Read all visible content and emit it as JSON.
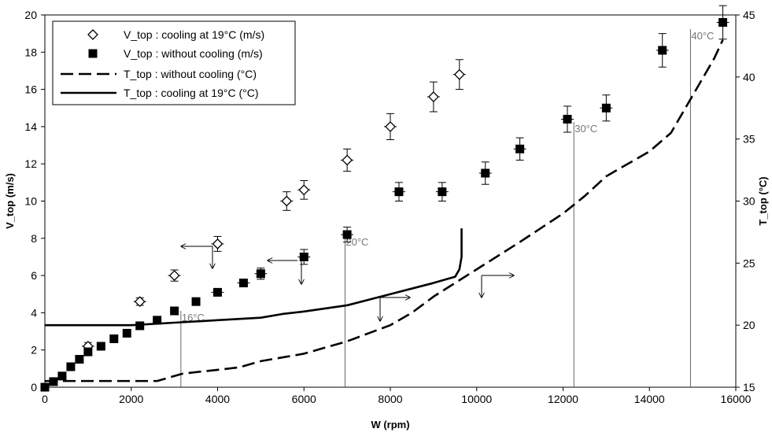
{
  "chart_data": {
    "type": "scatter",
    "x_axis": {
      "label": "W  (rpm)",
      "min": 0,
      "max": 16000,
      "ticks": [
        "0",
        "2000",
        "4000",
        "6000",
        "8000",
        "10000",
        "12000",
        "14000",
        "16000"
      ]
    },
    "y_left": {
      "label": "V_top (m/s)",
      "min": 0,
      "max": 20,
      "ticks": [
        "0",
        "2",
        "4",
        "6",
        "8",
        "10",
        "12",
        "14",
        "16",
        "18",
        "20"
      ]
    },
    "y_right": {
      "label": "T_top (°C)",
      "min": 15,
      "max": 45,
      "ticks": [
        "15",
        "20",
        "25",
        "30",
        "35",
        "40",
        "45"
      ]
    },
    "grid": false,
    "legend_position": "top-left",
    "series": [
      {
        "name": "V_top : cooling at 19°C (m/s)",
        "axis": "left",
        "marker": "open-diamond",
        "x": [
          1000,
          2200,
          3000,
          4000,
          5600,
          6000,
          7000,
          8000,
          9000,
          9600
        ],
        "y": [
          2.2,
          4.6,
          6.0,
          7.7,
          10.0,
          10.6,
          12.2,
          14.0,
          15.6,
          16.8
        ],
        "err": [
          0.2,
          0.2,
          0.3,
          0.4,
          0.5,
          0.5,
          0.6,
          0.7,
          0.8,
          0.8
        ]
      },
      {
        "name": "V_top : without cooling (m/s)",
        "axis": "left",
        "marker": "filled-square",
        "x": [
          0,
          200,
          400,
          600,
          800,
          1000,
          1300,
          1600,
          1900,
          2200,
          2600,
          3000,
          3500,
          4000,
          4600,
          5000,
          6000,
          7000,
          8200,
          9200,
          10200,
          11000,
          12100,
          13000,
          14300,
          15700
        ],
        "y": [
          0,
          0.3,
          0.6,
          1.1,
          1.5,
          1.9,
          2.2,
          2.6,
          2.9,
          3.3,
          3.6,
          4.1,
          4.6,
          5.1,
          5.6,
          6.1,
          7.0,
          8.2,
          10.5,
          10.5,
          11.5,
          12.8,
          14.4,
          15.0,
          18.1,
          19.6
        ],
        "err": [
          0,
          0,
          0,
          0,
          0,
          0,
          0,
          0,
          0,
          0,
          0,
          0,
          0,
          0.2,
          0.2,
          0.3,
          0.4,
          0.4,
          0.5,
          0.5,
          0.6,
          0.6,
          0.7,
          0.7,
          0.9,
          0.9
        ]
      },
      {
        "name": "T_top : without cooling (°C)",
        "axis": "right",
        "line": "dashed",
        "x": [
          0,
          2600,
          3000,
          3200,
          4000,
          4500,
          5000,
          6000,
          6500,
          7000,
          8000,
          8500,
          9000,
          10000,
          11000,
          12000,
          12500,
          13000,
          14000,
          14500,
          15000,
          15500,
          15700
        ],
        "y": [
          15.5,
          15.5,
          15.9,
          16.1,
          16.4,
          16.6,
          17.1,
          17.7,
          18.2,
          18.7,
          20.0,
          21.0,
          22.3,
          24.5,
          26.7,
          29.0,
          30.4,
          32.0,
          34.0,
          35.5,
          38.5,
          41.5,
          43.0
        ]
      },
      {
        "name": "T_top : cooling at 19°C (°C)",
        "axis": "right",
        "line": "solid",
        "x": [
          0,
          1000,
          2000,
          3000,
          4000,
          5000,
          5500,
          6000,
          7000,
          8000,
          9000,
          9500,
          9600,
          9650,
          9650
        ],
        "y": [
          20.0,
          20.0,
          20.0,
          20.2,
          20.4,
          20.6,
          20.9,
          21.1,
          21.6,
          22.5,
          23.4,
          23.9,
          24.5,
          25.5,
          27.8
        ]
      }
    ],
    "annotations": [
      {
        "text": "16°C",
        "x": 3150
      },
      {
        "text": "20°C",
        "x": 6950
      },
      {
        "text": "30°C",
        "x": 12250
      },
      {
        "text": "40°C",
        "x": 14950
      }
    ]
  }
}
